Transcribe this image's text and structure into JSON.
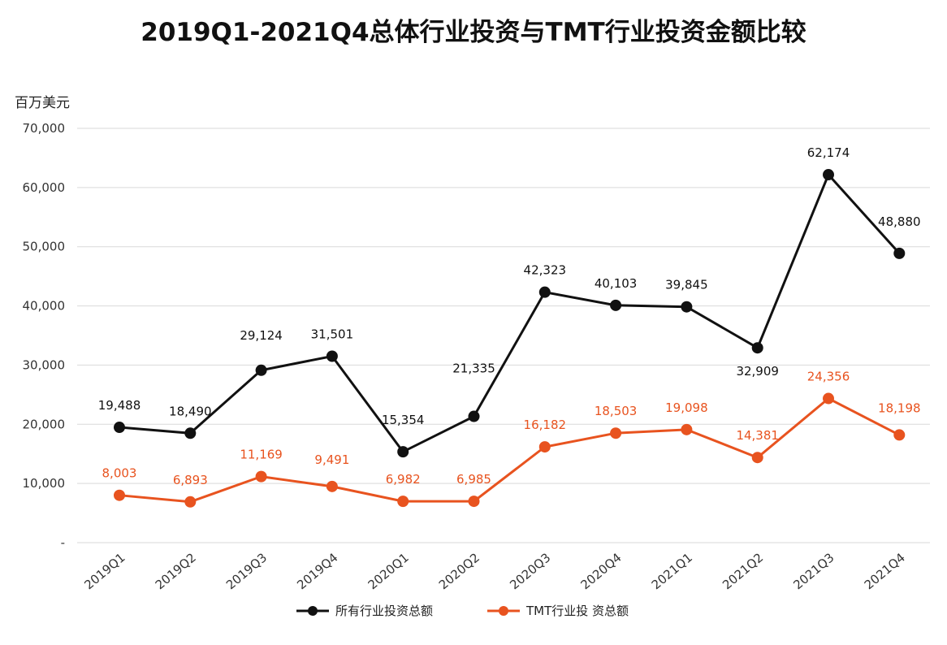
{
  "chart_data": {
    "type": "line",
    "title": "2019Q1-2021Q4总体行业投资与TMT行业投资金额比较",
    "ylabel": "百万美元",
    "xlabel": "",
    "ylim": [
      0,
      70000
    ],
    "yticks": [
      0,
      10000,
      20000,
      30000,
      40000,
      50000,
      60000,
      70000
    ],
    "ytick_labels": [
      "-",
      "10,000",
      "20,000",
      "30,000",
      "40,000",
      "50,000",
      "60,000",
      "70,000"
    ],
    "grid": true,
    "legend_position": "bottom",
    "categories": [
      "2019Q1",
      "2019Q2",
      "2019Q3",
      "2019Q4",
      "2020Q1",
      "2020Q2",
      "2020Q3",
      "2020Q4",
      "2021Q1",
      "2021Q2",
      "2021Q3",
      "2021Q4"
    ],
    "series": [
      {
        "name": "所有行业投资总额",
        "color": "#111111",
        "values": [
          19488,
          18490,
          29124,
          31501,
          15354,
          21335,
          42323,
          40103,
          39845,
          32909,
          62174,
          48880
        ],
        "labels": [
          "19,488",
          "18,490",
          "29,124",
          "31,501",
          "15,354",
          "21,335",
          "42,323",
          "40,103",
          "39,845",
          "32,909",
          "62,174",
          "48,880"
        ]
      },
      {
        "name": "TMT行业投 资总额",
        "color": "#e8531f",
        "values": [
          8003,
          6893,
          11169,
          9491,
          6982,
          6985,
          16182,
          18503,
          19098,
          14381,
          24356,
          18198
        ],
        "labels": [
          "8,003",
          "6,893",
          "11,169",
          "9,491",
          "6,982",
          "6,985",
          "16,182",
          "18,503",
          "19,098",
          "14,381",
          "24,356",
          "18,198"
        ]
      }
    ]
  }
}
